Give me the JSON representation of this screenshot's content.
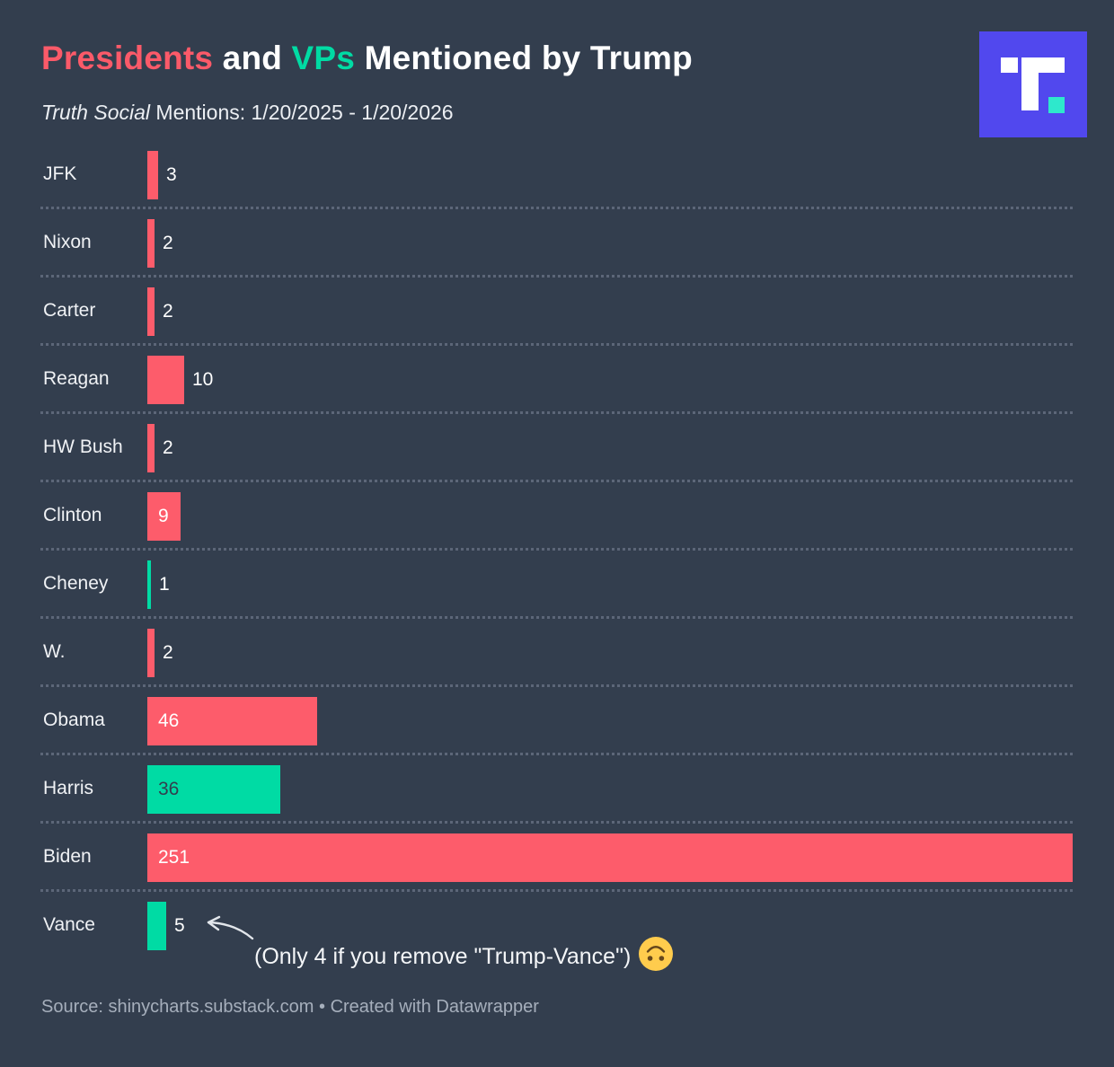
{
  "header": {
    "title_parts": [
      {
        "text": "Presidents",
        "color": "#FB5A69"
      },
      {
        "text": " and ",
        "color": "#FFFFFF"
      },
      {
        "text": "VPs",
        "color": "#00DBA4"
      },
      {
        "text": " Mentioned by Trump",
        "color": "#FFFFFF"
      }
    ],
    "subtitle_italic": "Truth Social",
    "subtitle_rest": " Mentions: 1/20/2025 - 1/20/2026"
  },
  "logo": {
    "name": "truth-social-logo",
    "background_color": "#5148EE",
    "glyph_color": "#FFFFFF",
    "accent_color": "#2EE8CC"
  },
  "chart_data": {
    "type": "bar",
    "orientation": "horizontal",
    "title": "Presidents and VPs Mentioned by Trump",
    "subtitle": "Truth Social Mentions: 1/20/2025 - 1/20/2026",
    "categories": [
      "JFK",
      "Nixon",
      "Carter",
      "Reagan",
      "HW Bush",
      "Clinton",
      "Cheney",
      "W.",
      "Obama",
      "Harris",
      "Biden",
      "Vance"
    ],
    "values": [
      3,
      2,
      2,
      10,
      2,
      9,
      1,
      2,
      46,
      36,
      251,
      5
    ],
    "bar_colors": [
      "red",
      "red",
      "red",
      "red",
      "red",
      "red",
      "teal",
      "red",
      "red",
      "teal",
      "red",
      "teal"
    ],
    "color_map": {
      "red": "#FD5C6B",
      "teal": "#00DBA4"
    },
    "color_legend": {
      "red": "Presidents",
      "teal": "VPs"
    },
    "label_positions": [
      "outside",
      "outside",
      "outside",
      "outside",
      "outside",
      "inside",
      "outside",
      "outside",
      "inside",
      "inside",
      "inside",
      "outside"
    ],
    "xlim": [
      0,
      251
    ],
    "grid": "dotted-row-separators",
    "legend_position": "none"
  },
  "annotation": {
    "text": "(Only 4 if you remove \"Trump-Vance\")",
    "emoji": "upside-down-face",
    "points_to": "Vance"
  },
  "footer": {
    "text": "Source: shinycharts.substack.com • Created with Datawrapper"
  },
  "colors": {
    "background": "#333E4E",
    "row_separator": "#5C6678",
    "label_text": "#F0F2F5",
    "footer_text": "#A6AFBC"
  }
}
